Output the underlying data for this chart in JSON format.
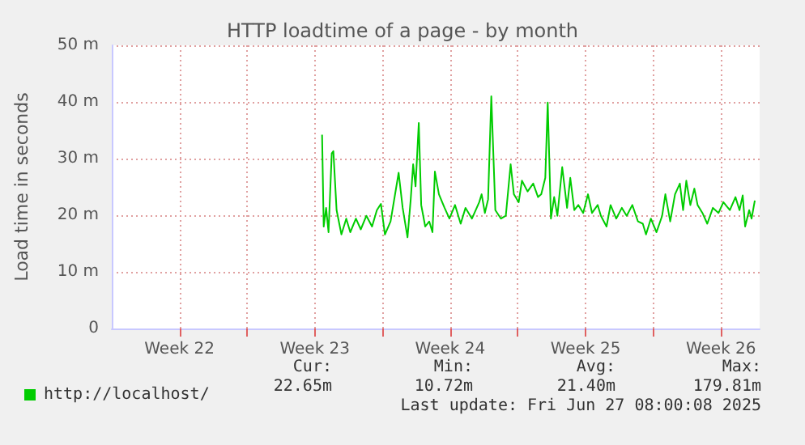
{
  "chart_data": {
    "type": "line",
    "title": "HTTP loadtime of a page - by month",
    "ylabel": "Load time in seconds",
    "xlim": [
      "2025-05-25T00:00",
      "2025-06-27T12:00"
    ],
    "xticks": [
      {
        "value": "2025-05-28T12:00",
        "label": "Week 22"
      },
      {
        "value": "2025-06-01T00:00",
        "label": null
      },
      {
        "value": "2025-06-04T12:00",
        "label": "Week 23"
      },
      {
        "value": "2025-06-08T00:00",
        "label": null
      },
      {
        "value": "2025-06-11T12:00",
        "label": "Week 24"
      },
      {
        "value": "2025-06-15T00:00",
        "label": null
      },
      {
        "value": "2025-06-18T12:00",
        "label": "Week 25"
      },
      {
        "value": "2025-06-22T00:00",
        "label": null
      },
      {
        "value": "2025-06-25T12:00",
        "label": "Week 26"
      }
    ],
    "ylim": [
      0,
      50
    ],
    "yticks": [
      0,
      {
        "value": 10,
        "label": "10 m"
      },
      {
        "value": 20,
        "label": "20 m"
      },
      {
        "value": 30,
        "label": "30 m"
      },
      {
        "value": 40,
        "label": "40 m"
      },
      {
        "value": 50,
        "label": "50 m"
      }
    ],
    "grid": true,
    "legend": "bottom left",
    "series": [
      {
        "name": "http://localhost/",
        "color": "#00cc00",
        "x": [
          "2025-06-04T21:00",
          "2025-06-04T23:00",
          "2025-06-05T02:00",
          "2025-06-05T05:00",
          "2025-06-05T09:00",
          "2025-06-05T11:00",
          "2025-06-05T15:00",
          "2025-06-05T21:00",
          "2025-06-06T03:00",
          "2025-06-06T08:00",
          "2025-06-06T15:00",
          "2025-06-06T21:00",
          "2025-06-07T04:00",
          "2025-06-07T11:00",
          "2025-06-07T17:00",
          "2025-06-07T22:00",
          "2025-06-08T03:00",
          "2025-06-08T10:00",
          "2025-06-08T20:00",
          "2025-06-09T01:00",
          "2025-06-09T07:00",
          "2025-06-09T11:00",
          "2025-06-09T14:00",
          "2025-06-09T17:00",
          "2025-06-09T21:00",
          "2025-06-10T00:00",
          "2025-06-10T05:00",
          "2025-06-10T10:00",
          "2025-06-10T14:00",
          "2025-06-10T17:00",
          "2025-06-10T22:00",
          "2025-06-11T05:00",
          "2025-06-11T11:00",
          "2025-06-11T18:00",
          "2025-06-12T01:00",
          "2025-06-12T07:00",
          "2025-06-12T15:00",
          "2025-06-13T00:00",
          "2025-06-13T03:00",
          "2025-06-13T07:00",
          "2025-06-13T11:00",
          "2025-06-13T15:00",
          "2025-06-13T20:00",
          "2025-06-14T03:00",
          "2025-06-14T09:00",
          "2025-06-14T15:00",
          "2025-06-14T19:00",
          "2025-06-15T01:00",
          "2025-06-15T05:00",
          "2025-06-15T12:00",
          "2025-06-15T19:00",
          "2025-06-16T01:00",
          "2025-06-16T05:00",
          "2025-06-16T10:00",
          "2025-06-16T13:00",
          "2025-06-16T17:00",
          "2025-06-16T21:00",
          "2025-06-17T01:00",
          "2025-06-17T07:00",
          "2025-06-17T13:00",
          "2025-06-17T17:00",
          "2025-06-17T22:00",
          "2025-06-18T03:00",
          "2025-06-18T09:00",
          "2025-06-18T15:00",
          "2025-06-18T20:00",
          "2025-06-19T03:00",
          "2025-06-19T07:00",
          "2025-06-19T14:00",
          "2025-06-19T19:00",
          "2025-06-20T02:00",
          "2025-06-20T09:00",
          "2025-06-20T15:00",
          "2025-06-20T22:00",
          "2025-06-21T05:00",
          "2025-06-21T11:00",
          "2025-06-21T15:00",
          "2025-06-21T21:00",
          "2025-06-22T04:00",
          "2025-06-22T11:00",
          "2025-06-22T15:00",
          "2025-06-22T21:00",
          "2025-06-23T03:00",
          "2025-06-23T09:00",
          "2025-06-23T13:00",
          "2025-06-23T17:00",
          "2025-06-23T22:00",
          "2025-06-24T03:00",
          "2025-06-24T07:00",
          "2025-06-24T13:00",
          "2025-06-24T19:00",
          "2025-06-25T02:00",
          "2025-06-25T09:00",
          "2025-06-25T15:00",
          "2025-06-25T23:00",
          "2025-06-26T06:00",
          "2025-06-26T11:00",
          "2025-06-26T15:00",
          "2025-06-26T18:00",
          "2025-06-26T23:00",
          "2025-06-27T02:00",
          "2025-06-27T06:00"
        ],
        "values": [
          34.2,
          18,
          21.3,
          17,
          30.9,
          31.3,
          20.9,
          16.6,
          19.4,
          17,
          19.4,
          17.5,
          19.9,
          18,
          20.9,
          22,
          16.6,
          18.9,
          27.5,
          21.3,
          16.1,
          22.8,
          29,
          25.1,
          36.3,
          21.8,
          18,
          18.9,
          17,
          27.7,
          23.7,
          21.3,
          19.4,
          21.8,
          18.5,
          21.3,
          19.4,
          22.3,
          23.7,
          20.4,
          22.8,
          41,
          20.9,
          19.4,
          19.9,
          29,
          23.7,
          22.3,
          26.1,
          24.2,
          25.6,
          23.2,
          23.7,
          26.6,
          39.9,
          19.4,
          23.2,
          19.9,
          28.5,
          21.3,
          26.6,
          20.9,
          21.8,
          20.4,
          23.7,
          20.4,
          21.8,
          19.9,
          18,
          21.8,
          19.4,
          21.3,
          19.9,
          21.8,
          18.9,
          18.5,
          16.6,
          19.4,
          17,
          19.9,
          23.7,
          18.9,
          23.7,
          25.6,
          20.9,
          26.1,
          21.8,
          24.7,
          21.8,
          20.4,
          18.5,
          21.3,
          20.4,
          22.3,
          20.9,
          23.2,
          20.9,
          23.5,
          18,
          20.9,
          19.4,
          22.6
        ]
      }
    ],
    "annotations": [
      "Cur:",
      "Min:",
      "Avg:",
      "Max:",
      "22.65m",
      "10.72m",
      "21.40m",
      "179.81m",
      "Last update: Fri Jun 27 08:00:08 2025"
    ]
  }
}
